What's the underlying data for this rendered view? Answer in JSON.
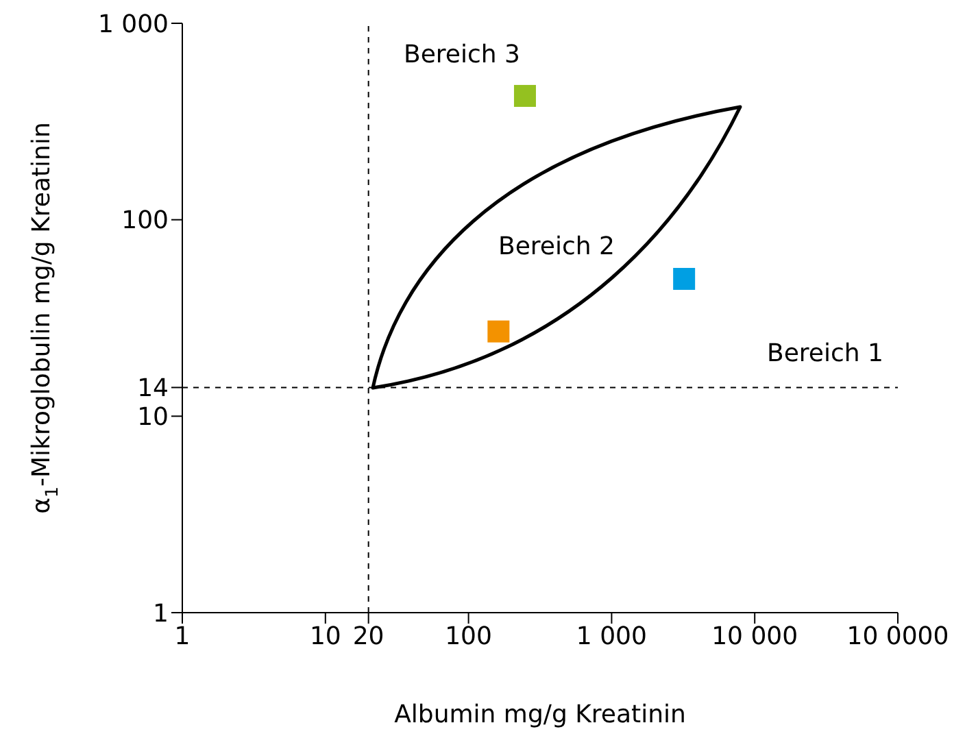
{
  "chart_data": {
    "type": "scatter",
    "xlabel": "Albumin mg/g Kreatinin",
    "ylabel": "α$_{1}$-Mikroglobulin mg/g Kreatinin",
    "log": "xy",
    "xlim": [
      1,
      100000
    ],
    "xticks": [
      1,
      10,
      20,
      100,
      {
        "value": 1000,
        "label": "1 000"
      },
      {
        "value": 10000,
        "label": "10 000"
      },
      {
        "value": 100000,
        "label": "10 0000"
      }
    ],
    "ylim": [
      1,
      1000
    ],
    "yticks": [
      1,
      10,
      14,
      100,
      {
        "value": 1000,
        "label": "1 000"
      }
    ],
    "marker": "square",
    "series": [
      {
        "color": "#94c120",
        "x": [
          248
        ],
        "values": [
          427
        ]
      },
      {
        "color": "#f39200",
        "x": [
          162
        ],
        "values": [
          27
        ]
      },
      {
        "color": "#009fe3",
        "x": [
          3210
        ],
        "values": [
          50
        ]
      }
    ],
    "ref_lines": [
      {
        "axis": "x",
        "value": 20,
        "line_style": "dashed",
        "color": "#000000"
      },
      {
        "axis": "y",
        "value": 14,
        "line_style": "dashed",
        "color": "#000000"
      }
    ],
    "annotations": [
      "Bereich 3",
      "Bereich 2",
      "Bereich 1"
    ]
  }
}
